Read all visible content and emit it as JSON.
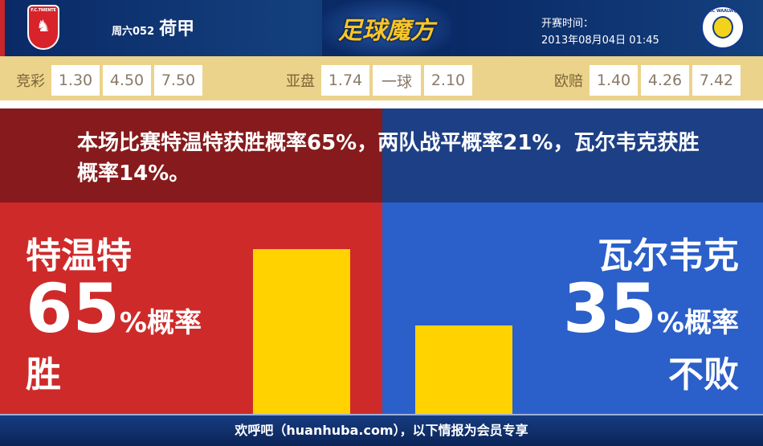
{
  "header": {
    "home_logo_text": "F.C.TWENTE",
    "away_logo_text": "RKC WAALWIJK",
    "round": "周六052",
    "league": "荷甲",
    "brand": "足球魔方",
    "time_label": "开赛时间：",
    "time": "2013年08月04日 01:45"
  },
  "odds": {
    "jingcai": {
      "label": "竞彩",
      "values": [
        "1.30",
        "4.50",
        "7.50"
      ]
    },
    "asian": {
      "label": "亚盘",
      "values": [
        "1.74",
        "一球",
        "2.10"
      ]
    },
    "euro": {
      "label": "欧赔",
      "values": [
        "1.40",
        "4.26",
        "7.42"
      ]
    }
  },
  "summary": "本场比赛特温特获胜概率65%，两队战平概率21%，瓦尔韦克获胜概率14%。",
  "home": {
    "name": "特温特",
    "pct": "65",
    "pct_suffix": "%概率",
    "result": "胜",
    "bar_value": 65
  },
  "away": {
    "name": "瓦尔韦克",
    "pct": "35",
    "pct_suffix": "%概率",
    "result": "不败",
    "bar_value": 35
  },
  "colors": {
    "home": "#cf2a2a",
    "away": "#2b5fc9",
    "bar": "#ffd200",
    "odds_bg": "#ecd38b"
  },
  "footer": "欢呼吧（huanhuba.com），以下情报为会员专享"
}
